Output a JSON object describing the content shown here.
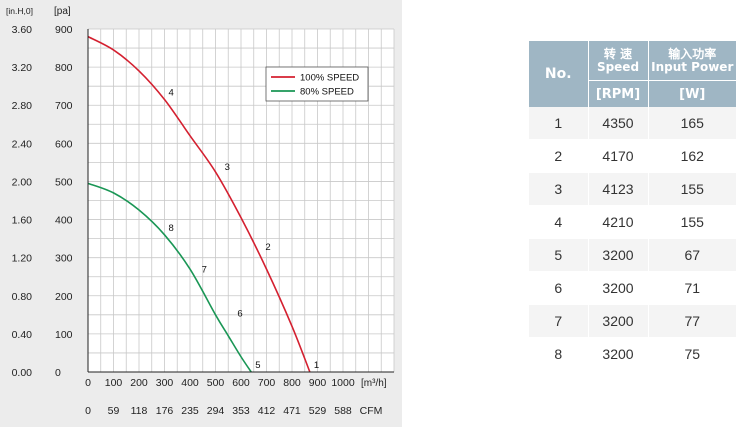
{
  "chart_data": {
    "type": "line",
    "left_axis_unit": "[in.H,0]",
    "y_unit": "[pa]",
    "x_unit": "[m³/h]",
    "x_ticks": [
      0,
      100,
      200,
      300,
      400,
      500,
      600,
      700,
      800,
      900,
      1000
    ],
    "x_tick_labels": [
      "0",
      "100",
      "200",
      "300",
      "400",
      "500",
      "600",
      "700",
      "800",
      "900",
      "1000"
    ],
    "cfm_ticks": [
      "0",
      "59",
      "118",
      "176",
      "235",
      "294",
      "353",
      "412",
      "471",
      "529",
      "588"
    ],
    "cfm_label": "CFM",
    "y_ticks": [
      0,
      100,
      200,
      300,
      400,
      500,
      600,
      700,
      800,
      900
    ],
    "y_tick_labels": [
      "0",
      "100",
      "200",
      "300",
      "400",
      "500",
      "600",
      "700",
      "800",
      "900"
    ],
    "inh2o_ticks": [
      "0.00",
      "0.40",
      "0.80",
      "1.20",
      "1.60",
      "2.00",
      "2.40",
      "2.80",
      "3.20",
      "3.60"
    ],
    "xlim": [
      0,
      1200
    ],
    "ylim": [
      0,
      900
    ],
    "grid": true,
    "legend_position": "top-right",
    "series": [
      {
        "name": "100% SPEED",
        "color": "#d42030",
        "x": [
          0,
          100,
          200,
          300,
          400,
          500,
          600,
          700,
          800,
          870
        ],
        "y": [
          880,
          845,
          790,
          715,
          620,
          525,
          405,
          270,
          120,
          0
        ]
      },
      {
        "name": "80% SPEED",
        "color": "#1a9655",
        "x": [
          0,
          100,
          200,
          300,
          400,
          500,
          550,
          600,
          640
        ],
        "y": [
          495,
          470,
          425,
          360,
          270,
          150,
          95,
          40,
          0
        ]
      }
    ],
    "point_labels": [
      {
        "label": "1",
        "x": 870,
        "y": 0
      },
      {
        "label": "2",
        "x": 680,
        "y": 310
      },
      {
        "label": "3",
        "x": 520,
        "y": 520
      },
      {
        "label": "4",
        "x": 300,
        "y": 715
      },
      {
        "label": "5",
        "x": 640,
        "y": 0
      },
      {
        "label": "6",
        "x": 570,
        "y": 135
      },
      {
        "label": "7",
        "x": 430,
        "y": 250
      },
      {
        "label": "8",
        "x": 300,
        "y": 360
      }
    ]
  },
  "table": {
    "header": {
      "no": "No.",
      "speed_cn": "转 速",
      "speed_en": "Speed",
      "power_cn": "输入功率",
      "power_en": "Input Power",
      "speed_unit": "[RPM]",
      "power_unit": "[W]"
    },
    "rows": [
      {
        "no": "1",
        "rpm": "4350",
        "w": "165"
      },
      {
        "no": "2",
        "rpm": "4170",
        "w": "162"
      },
      {
        "no": "3",
        "rpm": "4123",
        "w": "155"
      },
      {
        "no": "4",
        "rpm": "4210",
        "w": "155"
      },
      {
        "no": "5",
        "rpm": "3200",
        "w": "67"
      },
      {
        "no": "6",
        "rpm": "3200",
        "w": "71"
      },
      {
        "no": "7",
        "rpm": "3200",
        "w": "77"
      },
      {
        "no": "8",
        "rpm": "3200",
        "w": "75"
      }
    ]
  }
}
